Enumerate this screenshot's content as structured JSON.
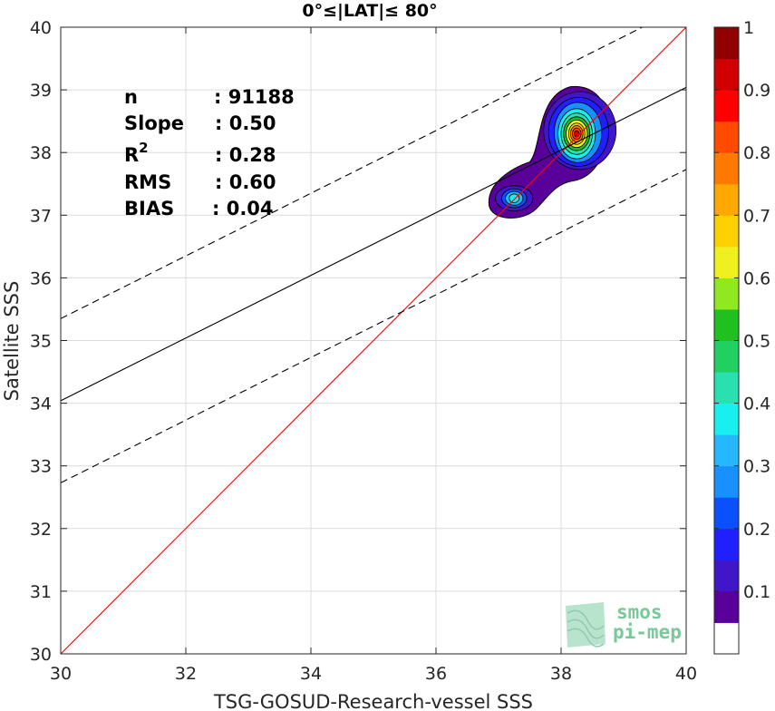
{
  "chart_data": {
    "type": "scatter",
    "title": "0°≤|LAT|≤ 80°",
    "xlabel": "TSG-GOSUD-Research-vessel SSS",
    "ylabel": "Satellite SSS",
    "xlim": [
      30,
      40
    ],
    "ylim": [
      30,
      40
    ],
    "xticks": [
      "30",
      "32",
      "34",
      "36",
      "38",
      "40"
    ],
    "yticks": [
      "30",
      "31",
      "32",
      "33",
      "34",
      "35",
      "36",
      "37",
      "38",
      "39",
      "40"
    ],
    "grid": true,
    "stats": [
      {
        "label": "n",
        "value": ": 91188"
      },
      {
        "label": "Slope",
        "value": ": 0.50"
      },
      {
        "label": "R",
        "sup": "2",
        "value": ": 0.28"
      },
      {
        "label": "RMS",
        "value": ": 0.60"
      },
      {
        "label": "BIAS",
        "value": ": 0.04"
      }
    ],
    "lines": {
      "identity": {
        "slope": 1,
        "intercept": 0,
        "color": "#ff0000"
      },
      "regression": {
        "slope": 0.5,
        "intercept": 19.04,
        "color": "#000000"
      },
      "upper_dashed": {
        "slope": 0.5,
        "intercept": 20.35,
        "color": "#000000"
      },
      "lower_dashed": {
        "slope": 0.5,
        "intercept": 17.73,
        "color": "#000000"
      }
    },
    "density_clusters": [
      {
        "x": 38.25,
        "y": 38.3,
        "peak": 0.92
      },
      {
        "x": 37.25,
        "y": 37.27,
        "peak": 0.36
      }
    ],
    "colorbar": {
      "ticks": [
        "0.1",
        "0.2",
        "0.3",
        "0.4",
        "0.5",
        "0.6",
        "0.7",
        "0.8",
        "0.9",
        "1"
      ],
      "colors": [
        "#ffffff",
        "#5a009a",
        "#4016c8",
        "#2020ff",
        "#0a50ff",
        "#1890ff",
        "#26b8ff",
        "#18f0f0",
        "#28e0b0",
        "#20d060",
        "#20c020",
        "#90e820",
        "#f0f020",
        "#ffd000",
        "#ffa800",
        "#ff7800",
        "#ff4a00",
        "#ff0000",
        "#d00000",
        "#900000"
      ]
    }
  },
  "logo": {
    "line1": "smos",
    "line2": "pi-mep"
  }
}
